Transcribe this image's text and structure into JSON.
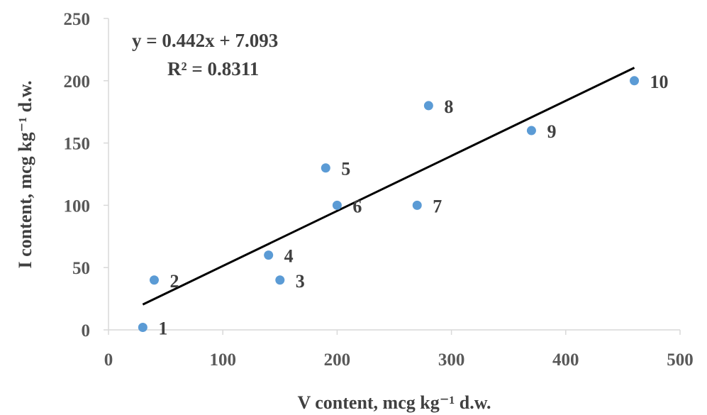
{
  "chart_data": {
    "type": "scatter",
    "xlabel": "V content, mcg kg⁻¹ d.w.",
    "ylabel": "I content, mcg kg⁻¹ d.w.",
    "xlim": [
      0,
      500
    ],
    "ylim": [
      0,
      250
    ],
    "x_ticks": [
      0,
      100,
      200,
      300,
      400,
      500
    ],
    "y_ticks": [
      0,
      50,
      100,
      150,
      200,
      250
    ],
    "grid": false,
    "point_color": "#5b9bd5",
    "trendline_color": "#000000",
    "points": [
      {
        "label": "1",
        "x": 30,
        "y": 2
      },
      {
        "label": "2",
        "x": 40,
        "y": 40
      },
      {
        "label": "3",
        "x": 150,
        "y": 40
      },
      {
        "label": "4",
        "x": 140,
        "y": 60
      },
      {
        "label": "5",
        "x": 190,
        "y": 130
      },
      {
        "label": "6",
        "x": 200,
        "y": 100
      },
      {
        "label": "7",
        "x": 270,
        "y": 100
      },
      {
        "label": "8",
        "x": 280,
        "y": 180
      },
      {
        "label": "9",
        "x": 370,
        "y": 160
      },
      {
        "label": "10",
        "x": 460,
        "y": 200
      }
    ],
    "trendline": {
      "slope": 0.442,
      "intercept": 7.093,
      "x_range": [
        30,
        460
      ],
      "equation": "y = 0.442x + 7.093",
      "r_squared": "R² = 0.8311"
    }
  }
}
